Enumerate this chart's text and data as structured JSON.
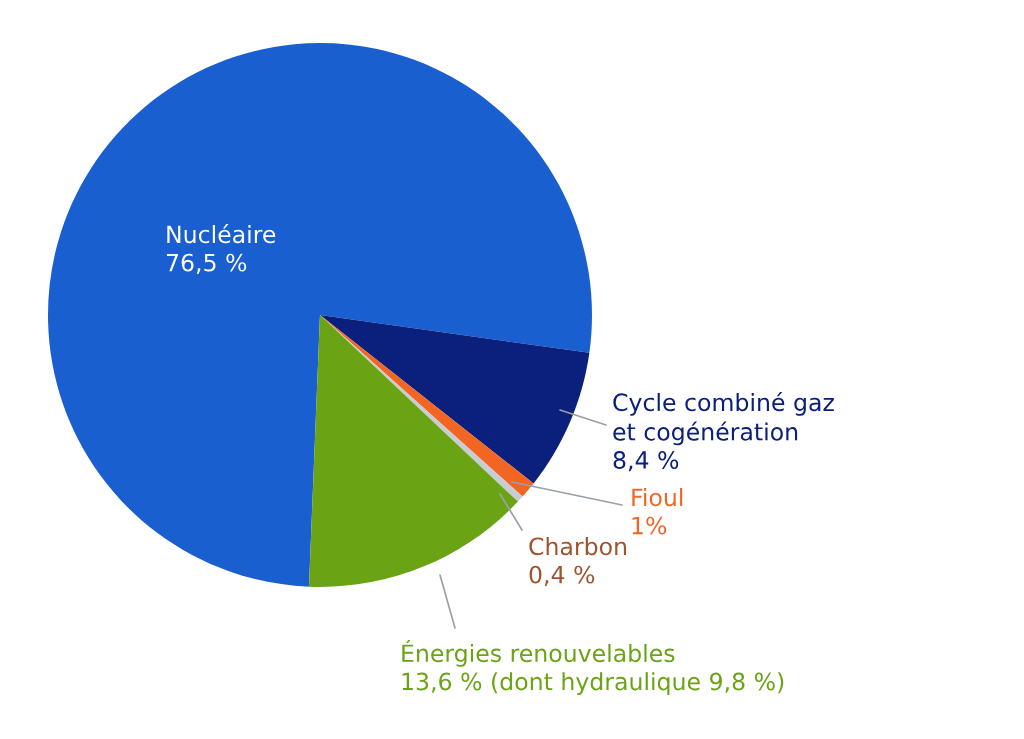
{
  "chart_data": {
    "type": "pie",
    "categories": [
      "Nucléaire",
      "Cycle combiné gaz\net cogénération",
      "Fioul",
      "Charbon",
      "Énergies renouvelables"
    ],
    "values": [
      76.5,
      8.4,
      1,
      0.4,
      13.6
    ],
    "value_labels": [
      "76,5 %",
      "8,4 %",
      "1%",
      "0,4 %",
      "13,6 % (dont hydraulique 9,8 %)"
    ],
    "colors": [
      "#1a5fd0",
      "#0b1f7c",
      "#f26522",
      "#c9ccd3",
      "#6aa314"
    ]
  }
}
